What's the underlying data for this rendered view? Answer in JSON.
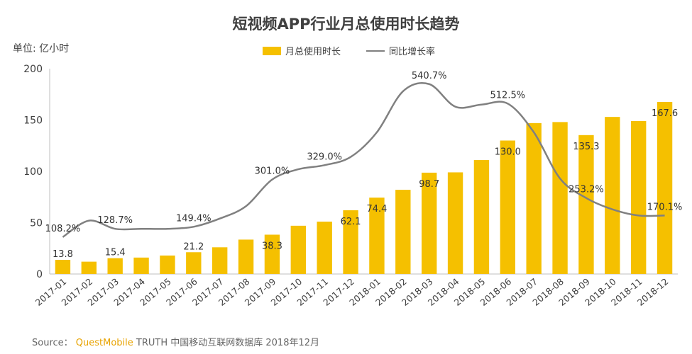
{
  "chart_data": {
    "type": "bar+line",
    "title": "短视频APP行业月总使用时长趋势",
    "unit_label": "单位: 亿小时",
    "categories": [
      "2017-01",
      "2017-02",
      "2017-03",
      "2017-04",
      "2017-05",
      "2017-06",
      "2017-07",
      "2017-08",
      "2017-09",
      "2017-10",
      "2017-11",
      "2017-12",
      "2018-01",
      "2018-02",
      "2018-03",
      "2018-04",
      "2018-05",
      "2018-06",
      "2018-07",
      "2018-08",
      "2018-09",
      "2018-10",
      "2018-11",
      "2018-12"
    ],
    "ylim": [
      0,
      200
    ],
    "yticks": [
      "0",
      "50",
      "100",
      "150",
      "200"
    ],
    "series": [
      {
        "name": "月总使用时长",
        "type": "bar",
        "color": "#f5c000",
        "values": [
          13.8,
          12.0,
          15.4,
          16.0,
          18.0,
          21.2,
          26.0,
          33.5,
          38.3,
          47.0,
          51.0,
          62.1,
          74.4,
          82.0,
          98.7,
          99.0,
          111.0,
          130.0,
          147.0,
          148.0,
          135.3,
          153.0,
          149.0,
          167.6
        ],
        "labels": [
          "13.8",
          "",
          "15.4",
          "",
          "",
          "21.2",
          "",
          "",
          "38.3",
          "",
          "",
          "62.1",
          "74.4",
          "",
          "98.7",
          "",
          "",
          "130.0",
          "",
          "",
          "135.3",
          "",
          "",
          "167.6"
        ]
      },
      {
        "name": "同比增长率",
        "type": "line",
        "color": "#808080",
        "values": [
          36,
          52,
          44,
          44,
          44,
          46,
          54,
          66,
          92,
          102,
          106,
          114,
          138,
          178,
          185,
          163,
          165,
          166,
          138,
          93,
          74,
          63,
          57,
          57
        ],
        "labels": [
          "108.2%",
          "",
          "128.7%",
          "",
          "",
          "149.4%",
          "",
          "",
          "301.0%",
          "",
          "329.0%",
          "",
          "",
          "",
          "540.7%",
          "",
          "",
          "512.5%",
          "",
          "",
          "253.2%",
          "",
          "",
          "170.1%"
        ]
      }
    ]
  },
  "source": {
    "prefix": "Source：",
    "brand": "QuestMobile",
    "rest": "TRUTH 中国移动互联网数据库 2018年12月"
  }
}
